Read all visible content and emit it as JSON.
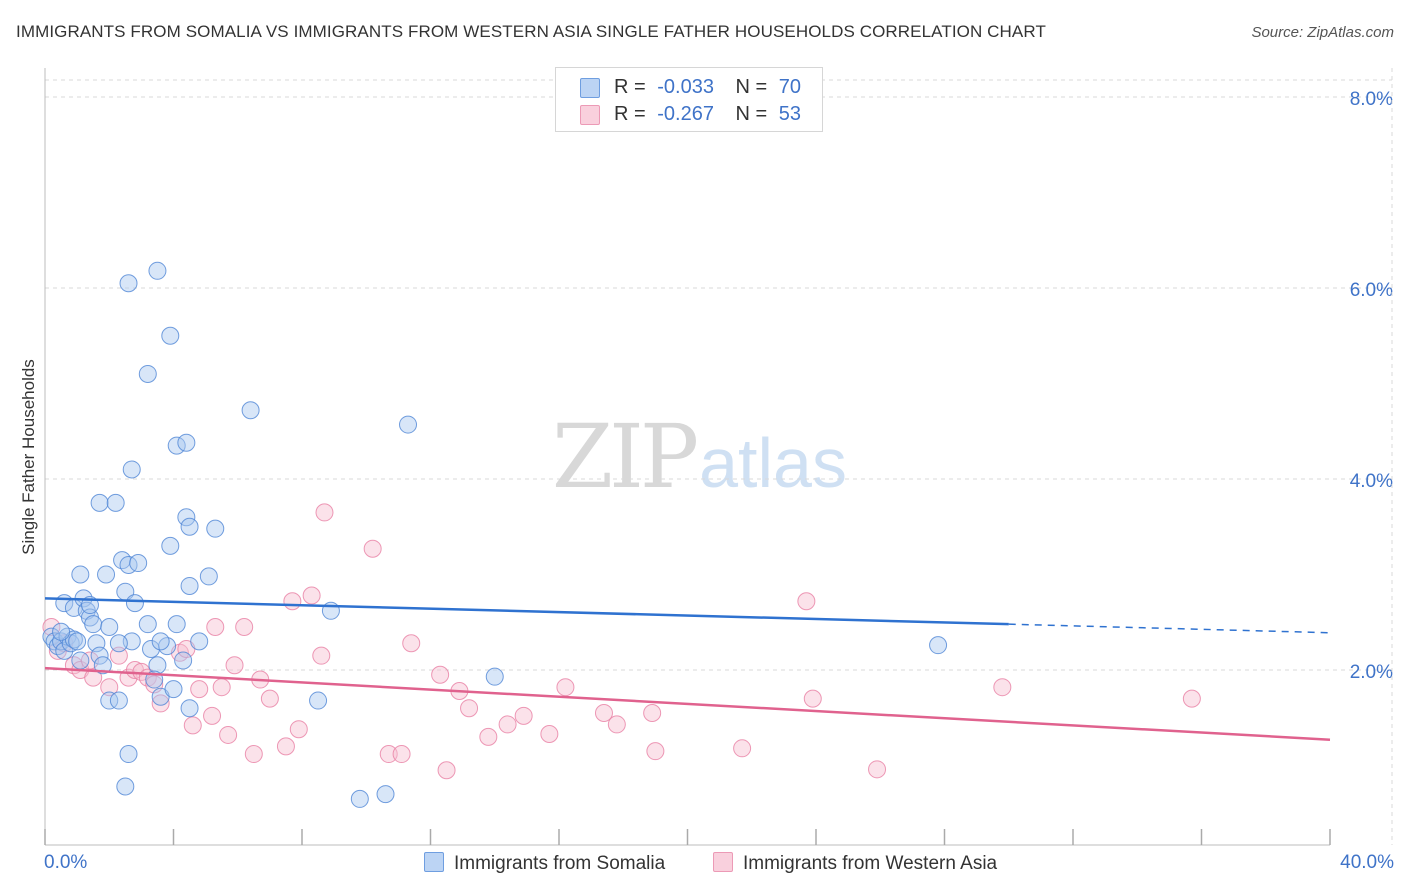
{
  "title": "IMMIGRANTS FROM SOMALIA VS IMMIGRANTS FROM WESTERN ASIA SINGLE FATHER HOUSEHOLDS CORRELATION CHART",
  "source": "Source: ZipAtlas.com",
  "watermark": {
    "zip": "ZIP",
    "atlas": "atlas"
  },
  "legend": {
    "rows": [
      {
        "r_label": "R =",
        "r_value": "-0.033",
        "n_label": "N =",
        "n_value": "70"
      },
      {
        "r_label": "R =",
        "r_value": "-0.267",
        "n_label": "N =",
        "n_value": "53"
      }
    ]
  },
  "colors": {
    "somalia_fill": "#a9c8f0",
    "somalia_stroke": "#4f86d6",
    "somalia_line": "#2f72d0",
    "wasia_fill": "#f6bfd0",
    "wasia_stroke": "#e880a4",
    "wasia_line": "#e0628e",
    "grid": "#d9d9d9",
    "axis_text": "#3f73c8"
  },
  "chart_data": {
    "type": "scatter",
    "title": "IMMIGRANTS FROM SOMALIA VS IMMIGRANTS FROM WESTERN ASIA SINGLE FATHER HOUSEHOLDS CORRELATION CHART",
    "xlabel": "",
    "ylabel": "Single Father Households",
    "xlim": [
      0,
      40
    ],
    "ylim": [
      0,
      8.4
    ],
    "x_tick_labels": [
      "0.0%",
      "40.0%"
    ],
    "y_ticks": [
      2,
      4,
      6,
      8
    ],
    "y_tick_labels": [
      "2.0%",
      "4.0%",
      "6.0%",
      "8.0%"
    ],
    "grid": true,
    "legend_position": "bottom",
    "series": [
      {
        "name": "Immigrants from Somalia",
        "r": -0.033,
        "n": 70,
        "trend": {
          "x0": 0,
          "y0": 2.75,
          "x1": 30,
          "y1": 2.48,
          "dash_to_x": 40,
          "dash_to_y": 2.39
        },
        "points": [
          [
            0.2,
            2.35
          ],
          [
            0.3,
            2.3
          ],
          [
            0.4,
            2.25
          ],
          [
            0.5,
            2.3
          ],
          [
            0.6,
            2.2
          ],
          [
            0.7,
            2.35
          ],
          [
            0.8,
            2.28
          ],
          [
            0.9,
            2.32
          ],
          [
            1.0,
            2.3
          ],
          [
            1.1,
            2.1
          ],
          [
            0.6,
            2.7
          ],
          [
            0.9,
            2.65
          ],
          [
            1.1,
            3.0
          ],
          [
            1.2,
            2.75
          ],
          [
            1.3,
            2.62
          ],
          [
            1.4,
            2.55
          ],
          [
            1.5,
            2.48
          ],
          [
            1.6,
            2.28
          ],
          [
            1.7,
            2.15
          ],
          [
            1.8,
            2.05
          ],
          [
            1.7,
            3.75
          ],
          [
            2.0,
            2.45
          ],
          [
            1.9,
            3.0
          ],
          [
            2.2,
            3.75
          ],
          [
            2.4,
            3.15
          ],
          [
            2.5,
            2.82
          ],
          [
            2.6,
            3.1
          ],
          [
            2.7,
            2.3
          ],
          [
            2.8,
            2.7
          ],
          [
            2.9,
            3.12
          ],
          [
            2.6,
            6.05
          ],
          [
            3.2,
            2.48
          ],
          [
            3.3,
            2.22
          ],
          [
            3.5,
            2.05
          ],
          [
            3.6,
            1.72
          ],
          [
            3.4,
            1.9
          ],
          [
            3.8,
            2.25
          ],
          [
            4.1,
            2.48
          ],
          [
            4.3,
            2.1
          ],
          [
            4.0,
            1.8
          ],
          [
            3.9,
            3.3
          ],
          [
            4.4,
            3.6
          ],
          [
            4.5,
            3.5
          ],
          [
            4.1,
            4.35
          ],
          [
            4.4,
            4.38
          ],
          [
            3.2,
            5.1
          ],
          [
            3.9,
            5.5
          ],
          [
            3.5,
            6.18
          ],
          [
            2.7,
            4.1
          ],
          [
            4.5,
            2.88
          ],
          [
            5.3,
            3.48
          ],
          [
            5.1,
            2.98
          ],
          [
            4.8,
            2.3
          ],
          [
            4.5,
            1.6
          ],
          [
            6.4,
            4.72
          ],
          [
            2.0,
            1.68
          ],
          [
            2.3,
            1.68
          ],
          [
            2.5,
            0.78
          ],
          [
            2.6,
            1.12
          ],
          [
            8.9,
            2.62
          ],
          [
            8.5,
            1.68
          ],
          [
            9.8,
            0.65
          ],
          [
            10.6,
            0.7
          ],
          [
            11.3,
            4.57
          ],
          [
            14.0,
            1.93
          ],
          [
            27.8,
            2.26
          ],
          [
            3.6,
            2.3
          ],
          [
            1.4,
            2.68
          ],
          [
            2.3,
            2.28
          ],
          [
            0.5,
            2.4
          ]
        ]
      },
      {
        "name": "Immigrants from Western Asia",
        "r": -0.267,
        "n": 53,
        "trend": {
          "x0": 0,
          "y0": 2.02,
          "x1": 40,
          "y1": 1.27
        },
        "points": [
          [
            0.2,
            2.45
          ],
          [
            0.4,
            2.2
          ],
          [
            0.6,
            2.28
          ],
          [
            0.9,
            2.05
          ],
          [
            1.1,
            2.0
          ],
          [
            1.4,
            2.1
          ],
          [
            1.5,
            1.92
          ],
          [
            2.0,
            1.82
          ],
          [
            2.3,
            2.15
          ],
          [
            2.6,
            1.92
          ],
          [
            2.8,
            2.0
          ],
          [
            3.0,
            1.98
          ],
          [
            3.2,
            1.92
          ],
          [
            3.4,
            1.85
          ],
          [
            3.6,
            1.65
          ],
          [
            4.2,
            2.18
          ],
          [
            4.4,
            2.22
          ],
          [
            4.6,
            1.42
          ],
          [
            4.8,
            1.8
          ],
          [
            5.2,
            1.52
          ],
          [
            5.3,
            2.45
          ],
          [
            5.5,
            1.82
          ],
          [
            5.7,
            1.32
          ],
          [
            5.9,
            2.05
          ],
          [
            6.2,
            2.45
          ],
          [
            6.5,
            1.12
          ],
          [
            6.7,
            1.9
          ],
          [
            7.0,
            1.7
          ],
          [
            7.5,
            1.2
          ],
          [
            7.7,
            2.72
          ],
          [
            7.9,
            1.38
          ],
          [
            8.3,
            2.78
          ],
          [
            8.6,
            2.15
          ],
          [
            8.7,
            3.65
          ],
          [
            10.2,
            3.27
          ],
          [
            10.7,
            1.12
          ],
          [
            11.1,
            1.12
          ],
          [
            11.4,
            2.28
          ],
          [
            12.3,
            1.95
          ],
          [
            12.5,
            0.95
          ],
          [
            12.9,
            1.78
          ],
          [
            13.2,
            1.6
          ],
          [
            13.8,
            1.3
          ],
          [
            14.4,
            1.43
          ],
          [
            14.9,
            1.52
          ],
          [
            15.7,
            1.33
          ],
          [
            16.2,
            1.82
          ],
          [
            17.4,
            1.55
          ],
          [
            17.8,
            1.43
          ],
          [
            18.9,
            1.55
          ],
          [
            19.0,
            1.15
          ],
          [
            21.7,
            1.18
          ],
          [
            23.7,
            2.72
          ]
        ],
        "extra_points": [
          [
            23.9,
            1.7
          ],
          [
            25.9,
            0.96
          ],
          [
            29.8,
            1.82
          ],
          [
            35.7,
            1.7
          ]
        ]
      }
    ]
  },
  "bottom_legend": {
    "series1_label": "Immigrants from Somalia",
    "series2_label": "Immigrants from Western Asia"
  }
}
